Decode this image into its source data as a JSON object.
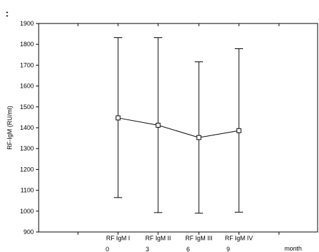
{
  "corner_mark": ":",
  "chart_data": {
    "type": "line",
    "title": "",
    "ylabel": "RF-IgM (RU/ml)",
    "xlabel": "month",
    "ylim": [
      900,
      1900
    ],
    "yticks": [
      900,
      1000,
      1100,
      1200,
      1300,
      1400,
      1500,
      1600,
      1700,
      1800,
      1900
    ],
    "categories": [
      "RF IgM I",
      "RF IgM II",
      "RF IgM III",
      "RF IgM IV"
    ],
    "months": [
      "0",
      "3",
      "6",
      "9"
    ],
    "series": [
      {
        "values": [
          1447,
          1412,
          1353,
          1386
        ],
        "error_low": [
          1065,
          993,
          990,
          995
        ],
        "error_high": [
          1832,
          1832,
          1716,
          1779
        ]
      }
    ],
    "grid": false,
    "legend": "none"
  }
}
